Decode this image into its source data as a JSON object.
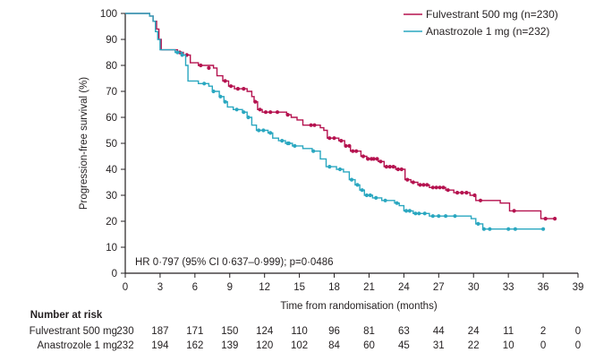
{
  "chart_data": {
    "type": "line",
    "subtype": "kaplan-meier",
    "xlabel": "Time from randomisation (months)",
    "ylabel": "Progression-free survival (%)",
    "xlim": [
      0,
      39
    ],
    "ylim": [
      0,
      100
    ],
    "x_ticks": [
      0,
      3,
      6,
      9,
      12,
      15,
      18,
      21,
      24,
      27,
      30,
      33,
      36,
      39
    ],
    "y_ticks": [
      0,
      10,
      20,
      30,
      40,
      50,
      60,
      70,
      80,
      90,
      100
    ],
    "grid": false,
    "legend_position": "top-right",
    "annotation": "HR 0·797 (95% CI 0·637–0·999); p=0·0486",
    "series": [
      {
        "name": "Fulvestrant 500 mg (n=230)",
        "color": "#b5124f",
        "steps": [
          [
            0,
            100
          ],
          [
            2.1,
            99
          ],
          [
            2.4,
            97
          ],
          [
            2.7,
            94
          ],
          [
            2.9,
            90
          ],
          [
            3.1,
            86
          ],
          [
            4.5,
            85
          ],
          [
            5.0,
            84
          ],
          [
            5.6,
            81
          ],
          [
            6.3,
            80
          ],
          [
            7.6,
            79
          ],
          [
            7.9,
            76
          ],
          [
            8.4,
            74
          ],
          [
            8.9,
            72
          ],
          [
            9.4,
            71
          ],
          [
            10.5,
            70
          ],
          [
            10.9,
            68
          ],
          [
            11.1,
            66
          ],
          [
            11.4,
            63
          ],
          [
            11.8,
            62
          ],
          [
            13.9,
            61
          ],
          [
            14.3,
            60
          ],
          [
            14.8,
            59
          ],
          [
            15.3,
            57
          ],
          [
            16.8,
            56
          ],
          [
            17.1,
            55
          ],
          [
            17.4,
            52
          ],
          [
            18.4,
            51
          ],
          [
            18.9,
            49
          ],
          [
            19.4,
            47
          ],
          [
            20.3,
            45
          ],
          [
            20.8,
            44
          ],
          [
            21.8,
            43
          ],
          [
            22.3,
            41
          ],
          [
            23.3,
            40
          ],
          [
            24.1,
            36
          ],
          [
            24.6,
            35
          ],
          [
            25.2,
            34
          ],
          [
            26.2,
            33
          ],
          [
            27.6,
            32
          ],
          [
            28.3,
            31
          ],
          [
            29.7,
            30
          ],
          [
            30.2,
            28
          ],
          [
            32.3,
            27
          ],
          [
            33.1,
            24
          ],
          [
            35.8,
            21
          ],
          [
            37.0,
            21
          ]
        ],
        "censor": [
          [
            4.7,
            85
          ],
          [
            5.3,
            84
          ],
          [
            6.5,
            80
          ],
          [
            7.2,
            79
          ],
          [
            8.6,
            74
          ],
          [
            9.1,
            72
          ],
          [
            9.7,
            71
          ],
          [
            10.2,
            71
          ],
          [
            11.2,
            66
          ],
          [
            11.6,
            63
          ],
          [
            12.1,
            62
          ],
          [
            12.5,
            62
          ],
          [
            13.1,
            62
          ],
          [
            14.0,
            61
          ],
          [
            16.0,
            57
          ],
          [
            16.3,
            57
          ],
          [
            17.6,
            52
          ],
          [
            18.0,
            52
          ],
          [
            18.6,
            51
          ],
          [
            19.0,
            49
          ],
          [
            19.3,
            49
          ],
          [
            19.6,
            47
          ],
          [
            19.9,
            47
          ],
          [
            20.5,
            45
          ],
          [
            20.9,
            44
          ],
          [
            21.2,
            44
          ],
          [
            21.4,
            44
          ],
          [
            21.7,
            44
          ],
          [
            22.0,
            43
          ],
          [
            22.5,
            41
          ],
          [
            22.8,
            41
          ],
          [
            23.1,
            41
          ],
          [
            23.5,
            40
          ],
          [
            23.8,
            40
          ],
          [
            24.3,
            36
          ],
          [
            24.8,
            35
          ],
          [
            25.4,
            34
          ],
          [
            25.7,
            34
          ],
          [
            26.0,
            34
          ],
          [
            26.5,
            33
          ],
          [
            26.8,
            33
          ],
          [
            27.1,
            33
          ],
          [
            27.4,
            33
          ],
          [
            27.8,
            32
          ],
          [
            28.6,
            31
          ],
          [
            29.0,
            31
          ],
          [
            29.4,
            31
          ],
          [
            30.1,
            30
          ],
          [
            30.6,
            28
          ],
          [
            33.5,
            24
          ],
          [
            36.2,
            21
          ],
          [
            37.0,
            21
          ]
        ]
      },
      {
        "name": "Anastrozole 1 mg (n=232)",
        "color": "#2aa7c0",
        "steps": [
          [
            0,
            100
          ],
          [
            2.1,
            99
          ],
          [
            2.4,
            97
          ],
          [
            2.6,
            93
          ],
          [
            2.8,
            90
          ],
          [
            3.0,
            86
          ],
          [
            4.3,
            85
          ],
          [
            4.9,
            84
          ],
          [
            5.2,
            80
          ],
          [
            5.4,
            74
          ],
          [
            6.3,
            73
          ],
          [
            7.2,
            72
          ],
          [
            7.5,
            70
          ],
          [
            8.1,
            68
          ],
          [
            8.5,
            66
          ],
          [
            8.8,
            64
          ],
          [
            9.3,
            63
          ],
          [
            10.1,
            62
          ],
          [
            10.5,
            60
          ],
          [
            10.9,
            57
          ],
          [
            11.3,
            55
          ],
          [
            12.3,
            54
          ],
          [
            12.7,
            52
          ],
          [
            13.2,
            51
          ],
          [
            13.8,
            50
          ],
          [
            14.4,
            49
          ],
          [
            15.3,
            48
          ],
          [
            16.1,
            47
          ],
          [
            16.8,
            44
          ],
          [
            17.3,
            41
          ],
          [
            18.2,
            40
          ],
          [
            18.8,
            39
          ],
          [
            19.3,
            36
          ],
          [
            19.8,
            34
          ],
          [
            20.2,
            32
          ],
          [
            20.6,
            30
          ],
          [
            21.3,
            29
          ],
          [
            22.1,
            28
          ],
          [
            23.2,
            27
          ],
          [
            23.6,
            26
          ],
          [
            24.0,
            24
          ],
          [
            24.8,
            23
          ],
          [
            25.6,
            23
          ],
          [
            26.2,
            22
          ],
          [
            29.8,
            21
          ],
          [
            30.2,
            19
          ],
          [
            30.8,
            17
          ],
          [
            36.0,
            17
          ]
        ],
        "censor": [
          [
            4.5,
            85
          ],
          [
            4.9,
            84
          ],
          [
            6.8,
            73
          ],
          [
            7.6,
            70
          ],
          [
            8.2,
            68
          ],
          [
            8.6,
            66
          ],
          [
            9.6,
            63
          ],
          [
            10.2,
            62
          ],
          [
            10.6,
            60
          ],
          [
            11.5,
            55
          ],
          [
            11.9,
            55
          ],
          [
            12.5,
            54
          ],
          [
            13.5,
            51
          ],
          [
            14.0,
            50
          ],
          [
            14.1,
            50
          ],
          [
            14.6,
            49
          ],
          [
            16.2,
            47
          ],
          [
            17.6,
            41
          ],
          [
            18.5,
            40
          ],
          [
            19.5,
            36
          ],
          [
            20.0,
            34
          ],
          [
            20.4,
            32
          ],
          [
            20.8,
            30
          ],
          [
            21.1,
            30
          ],
          [
            21.6,
            29
          ],
          [
            22.4,
            28
          ],
          [
            23.4,
            27
          ],
          [
            24.2,
            24
          ],
          [
            24.5,
            24
          ],
          [
            25.0,
            23
          ],
          [
            25.3,
            23
          ],
          [
            25.8,
            23
          ],
          [
            26.5,
            22
          ],
          [
            27.0,
            22
          ],
          [
            27.6,
            22
          ],
          [
            28.4,
            22
          ],
          [
            30.4,
            19
          ],
          [
            30.9,
            17
          ],
          [
            31.4,
            17
          ],
          [
            33.0,
            17
          ],
          [
            33.6,
            17
          ],
          [
            36.0,
            17
          ]
        ]
      }
    ],
    "risk_table": {
      "heading": "Number at risk",
      "rows": [
        {
          "label": "Fulvestrant 500 mg",
          "values": [
            "230",
            "187",
            "171",
            "150",
            "124",
            "110",
            "96",
            "81",
            "63",
            "44",
            "24",
            "11",
            "2",
            "0"
          ]
        },
        {
          "label": "Anastrozole 1 mg",
          "values": [
            "232",
            "194",
            "162",
            "139",
            "120",
            "102",
            "84",
            "60",
            "45",
            "31",
            "22",
            "10",
            "0",
            "0"
          ]
        }
      ]
    }
  }
}
